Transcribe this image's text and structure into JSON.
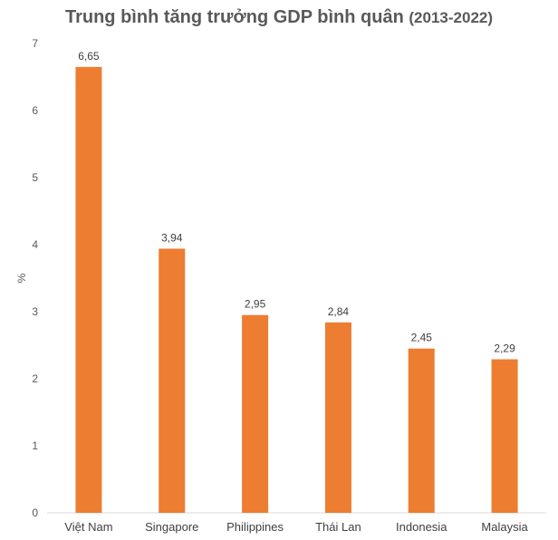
{
  "chart_data": {
    "type": "bar",
    "title": "Trung bình tăng trưởng GDP bình quân",
    "subtitle": "(2013-2022)",
    "ylabel": "%",
    "xlabel": "",
    "categories": [
      "Việt Nam",
      "Singapore",
      "Philippines",
      "Thái Lan",
      "Indonesia",
      "Malaysia"
    ],
    "values": [
      6.65,
      3.94,
      2.95,
      2.84,
      2.45,
      2.29
    ],
    "value_labels": [
      "6,65",
      "3,94",
      "2,95",
      "2,84",
      "2,45",
      "2,29"
    ],
    "yticks": [
      "0",
      "1",
      "2",
      "3",
      "4",
      "5",
      "6",
      "7"
    ],
    "ylim": [
      0,
      7
    ],
    "grid": false,
    "legend": "none",
    "bar_color": "#ED7D31"
  }
}
